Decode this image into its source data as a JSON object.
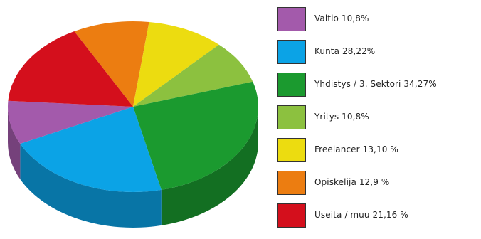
{
  "chart_data": {
    "type": "pie",
    "title": "",
    "slices": [
      {
        "label": "Valtio 10,8%",
        "name": "Valtio",
        "value": 10.8,
        "color": "#a35aab"
      },
      {
        "label": "Kunta 28,22%",
        "name": "Kunta",
        "value": 28.22,
        "color": "#0ba3e6"
      },
      {
        "label": "Yhdistys / 3. Sektori  34,27%",
        "name": "Yhdistys / 3. Sektori",
        "value": 34.27,
        "color": "#1b9a2f"
      },
      {
        "label": "Yritys 10,8%",
        "name": "Yritys",
        "value": 10.8,
        "color": "#8cc13f"
      },
      {
        "label": "Freelancer 13,10 %",
        "name": "Freelancer",
        "value": 13.1,
        "color": "#ecdc10"
      },
      {
        "label": "Opiskelija 12,9 %",
        "name": "Opiskelija",
        "value": 12.9,
        "color": "#ec7d11"
      },
      {
        "label": "Useita / muu 21,16 %",
        "name": "Useita / muu",
        "value": 21.16,
        "color": "#d40f1c"
      }
    ],
    "legend_position": "right",
    "style": "3d"
  }
}
